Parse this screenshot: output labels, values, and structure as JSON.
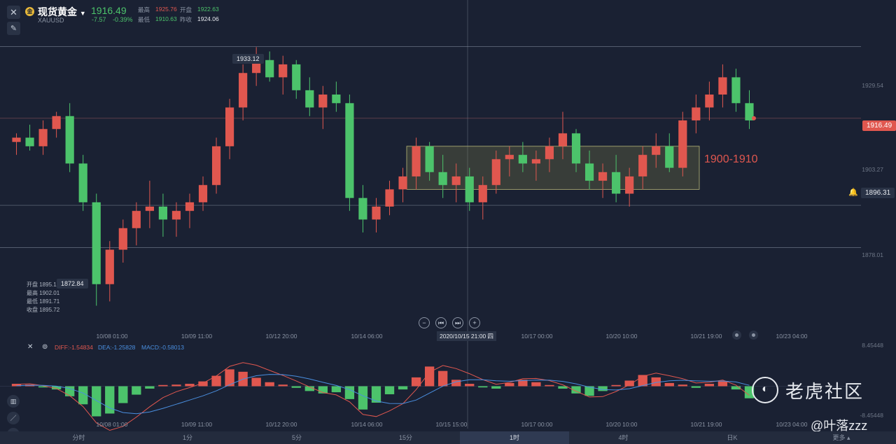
{
  "header": {
    "name": "现货黄金",
    "symbol": "XAUUSD",
    "price": "1916.49",
    "change": "-7.57",
    "change_pct": "-0.39%",
    "ohlc": {
      "high_label": "最高",
      "high": "1925.76",
      "open_label": "开盘",
      "open": "1922.63",
      "low_label": "最低",
      "low": "1910.63",
      "prev_label": "昨收",
      "prev": "1924.06"
    },
    "logo_glyph": "金"
  },
  "price_axis": {
    "labels": [
      "1929.54",
      "1903.27",
      "1878.01"
    ],
    "current_price": "1916.49",
    "alert_price": "1896.31",
    "peak_label": "1933.12",
    "low_label": "1872.84"
  },
  "annotation": {
    "range_text": "1900-1910"
  },
  "bar_info": {
    "open": "开盘 1895.1",
    "high": "最高 1902.01",
    "low": "最低 1891.71",
    "close": "收盘 1895.72"
  },
  "time_axis": {
    "labels": [
      "10/08 01:00",
      "10/09 11:00",
      "10/12 20:00",
      "10/14 06:00",
      "10/17 00:00",
      "10/20 10:00",
      "10/21 19:00",
      "10/23 04:00"
    ],
    "crosshair_label": "2020/10/15 21:00 四"
  },
  "macd_axis": {
    "labels": [
      "10/08 01:00",
      "10/09 11:00",
      "10/12 20:00",
      "10/14 06:00",
      "10/15 15:00",
      "10/17 00:00",
      "10/20 10:00",
      "10/21 19:00",
      "10/23 04:00"
    ],
    "top": "8.45448",
    "bottom": "-8.45448"
  },
  "macd": {
    "diff": "DIFF:-1.54834",
    "dea": "DEA:-1.25828",
    "macd": "MACD:-0.58013"
  },
  "timeframes": [
    "分时",
    "1分",
    "5分",
    "15分",
    "1时",
    "4时",
    "日K",
    "更多"
  ],
  "active_timeframe": "1时",
  "watermark": {
    "brand": "老虎社区",
    "author": "@叶落zzz"
  },
  "colors": {
    "up": "#e0574f",
    "down": "#4cc36b",
    "bg": "#1a2133",
    "box": "#8a8a4a"
  },
  "chart_data": {
    "type": "candlestick",
    "title": "",
    "x": [
      "10/08 01:00",
      "10/09 11:00",
      "10/12 20:00",
      "10/14 06:00",
      "10/15 15:00",
      "10/17 00:00",
      "10/20 10:00",
      "10/21 19:00",
      "10/23 04:00"
    ],
    "series": [
      {
        "values": [
          [
            1911,
            1913,
            1908,
            1912
          ],
          [
            1912,
            1915,
            1909,
            1910
          ],
          [
            1910,
            1916,
            1908,
            1914
          ],
          [
            1914,
            1918,
            1912,
            1917
          ],
          [
            1917,
            1920,
            1904,
            1906
          ],
          [
            1906,
            1908,
            1895,
            1897
          ],
          [
            1897,
            1899,
            1873,
            1878
          ],
          [
            1878,
            1888,
            1874,
            1886
          ],
          [
            1886,
            1893,
            1883,
            1891
          ],
          [
            1891,
            1897,
            1887,
            1895
          ],
          [
            1895,
            1902,
            1891,
            1896
          ],
          [
            1896,
            1899,
            1889,
            1893
          ],
          [
            1893,
            1897,
            1889,
            1895
          ],
          [
            1895,
            1899,
            1891,
            1897
          ],
          [
            1897,
            1903,
            1895,
            1901
          ],
          [
            1901,
            1912,
            1899,
            1910
          ],
          [
            1910,
            1921,
            1907,
            1919
          ],
          [
            1919,
            1929,
            1916,
            1927
          ],
          [
            1927,
            1933,
            1924,
            1930
          ],
          [
            1930,
            1932,
            1925,
            1926
          ],
          [
            1926,
            1931,
            1922,
            1929
          ],
          [
            1929,
            1930,
            1921,
            1923
          ],
          [
            1923,
            1926,
            1917,
            1919
          ],
          [
            1919,
            1924,
            1914,
            1922
          ],
          [
            1922,
            1925,
            1918,
            1920
          ],
          [
            1920,
            1922,
            1895,
            1898
          ],
          [
            1898,
            1901,
            1890,
            1893
          ],
          [
            1893,
            1898,
            1890,
            1896
          ],
          [
            1896,
            1902,
            1894,
            1900
          ],
          [
            1900,
            1905,
            1897,
            1903
          ],
          [
            1903,
            1912,
            1900,
            1910
          ],
          [
            1910,
            1911,
            1902,
            1904
          ],
          [
            1904,
            1908,
            1898,
            1901
          ],
          [
            1901,
            1906,
            1897,
            1903
          ],
          [
            1903,
            1905,
            1895,
            1897
          ],
          [
            1897,
            1903,
            1893,
            1901
          ],
          [
            1901,
            1909,
            1899,
            1907
          ],
          [
            1907,
            1910,
            1903,
            1908
          ],
          [
            1908,
            1911,
            1904,
            1906
          ],
          [
            1906,
            1909,
            1902,
            1907
          ],
          [
            1907,
            1912,
            1904,
            1910
          ],
          [
            1910,
            1918,
            1907,
            1913
          ],
          [
            1913,
            1914,
            1904,
            1906
          ],
          [
            1906,
            1909,
            1900,
            1902
          ],
          [
            1902,
            1906,
            1898,
            1904
          ],
          [
            1904,
            1908,
            1897,
            1899
          ],
          [
            1899,
            1905,
            1896,
            1903
          ],
          [
            1903,
            1910,
            1900,
            1908
          ],
          [
            1908,
            1913,
            1905,
            1910
          ],
          [
            1910,
            1913,
            1904,
            1905
          ],
          [
            1905,
            1918,
            1903,
            1916
          ],
          [
            1916,
            1922,
            1913,
            1919
          ],
          [
            1919,
            1925,
            1916,
            1922
          ],
          [
            1922,
            1929,
            1919,
            1926
          ],
          [
            1926,
            1928,
            1918,
            1920
          ],
          [
            1920,
            1923,
            1914,
            1916
          ]
        ]
      }
    ],
    "ylim": [
      1870,
      1935
    ],
    "price_lines": [
      1933.12,
      1916.49,
      1896.31,
      1886.5
    ],
    "box": {
      "x_start": "10/15 15:00",
      "x_end": "10/21 19:00",
      "y_low": 1900,
      "y_high": 1910
    },
    "macd_hist": [
      0.6,
      0.4,
      -0.3,
      -0.8,
      -2.5,
      -4.5,
      -7.5,
      -6.8,
      -4.2,
      -2.1,
      -0.6,
      0.3,
      0.4,
      0.6,
      1.2,
      2.6,
      4.2,
      3.6,
      2.1,
      1.0,
      0.4,
      -0.4,
      -1.2,
      -1.8,
      -1.5,
      -3.2,
      -5.8,
      -4.1,
      -2.0,
      -0.8,
      2.2,
      4.9,
      3.8,
      1.6,
      0.6,
      -0.3,
      -0.6,
      0.8,
      1.6,
      1.0,
      0.3,
      -0.6,
      -1.8,
      -2.4,
      -1.2,
      0.3,
      1.4,
      2.8,
      2.2,
      0.8,
      0.4,
      -0.4,
      0.6,
      1.2,
      -0.8,
      -3.0
    ],
    "ylim_macd": [
      -8.45448,
      8.45448
    ]
  }
}
